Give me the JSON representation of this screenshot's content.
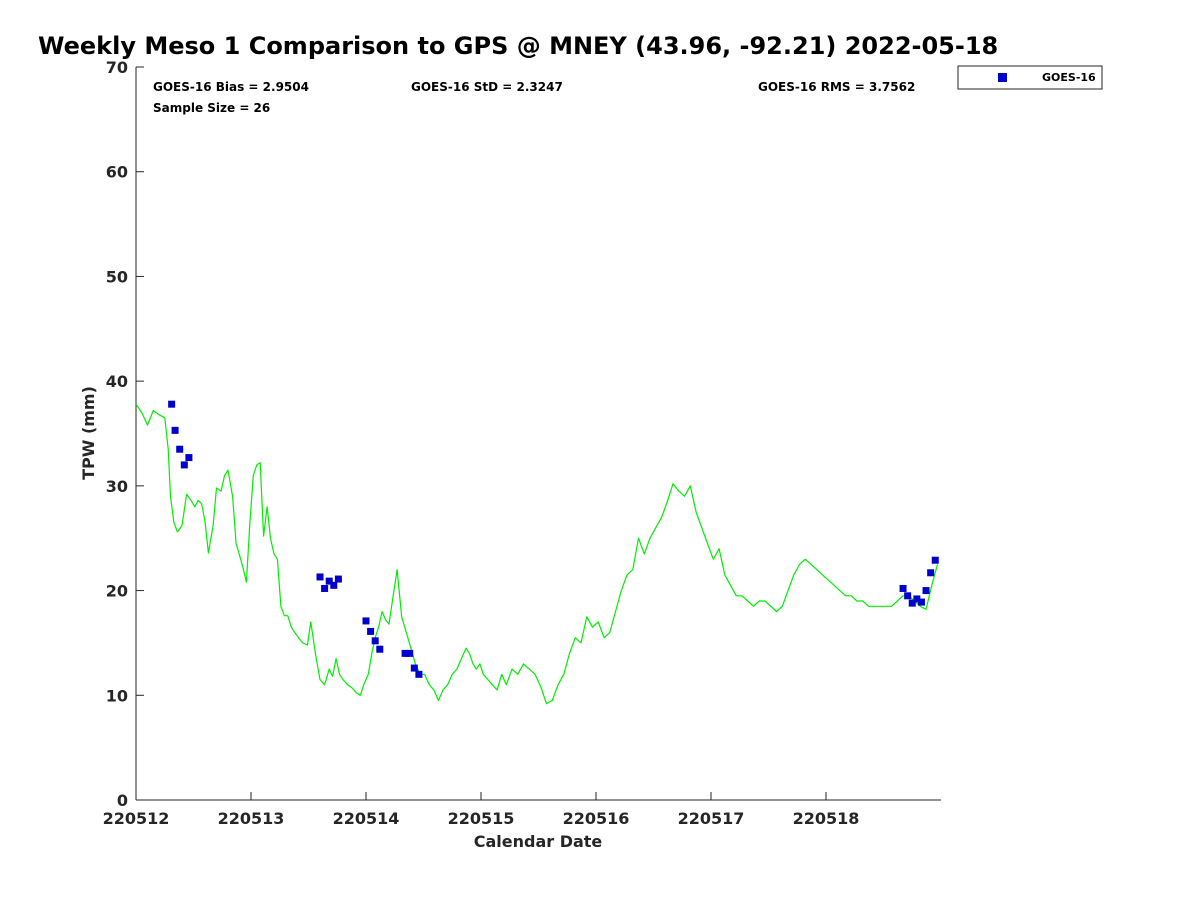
{
  "chart_data": {
    "type": "scatter",
    "title": "Weekly Meso 1 Comparison to GPS @ MNEY (43.96, -92.21) 2022-05-18",
    "xlabel": "Calendar Date",
    "ylabel": "TPW (mm)",
    "xlim": [
      0,
      7
    ],
    "ylim": [
      0,
      70
    ],
    "yticks": [
      0,
      10,
      20,
      30,
      40,
      50,
      60,
      70
    ],
    "xticks": [
      {
        "value": 0,
        "label": "220512"
      },
      {
        "value": 1,
        "label": "220513"
      },
      {
        "value": 2,
        "label": "220514"
      },
      {
        "value": 3,
        "label": "220515"
      },
      {
        "value": 4,
        "label": "220516"
      },
      {
        "value": 5,
        "label": "220517"
      },
      {
        "value": 6,
        "label": "220518"
      }
    ],
    "grid": false,
    "legend_position": "outside-top-right",
    "stats": {
      "bias": "GOES-16 Bias = 2.9504",
      "std": "GOES-16 StD = 2.3247",
      "rms": "GOES-16 RMS = 3.7562",
      "sample": "Sample Size = 26"
    },
    "series": [
      {
        "name": "GOES-16",
        "type": "scatter",
        "color": "#0000cc",
        "x": [
          0.31,
          0.34,
          0.38,
          0.42,
          0.46,
          1.6,
          1.64,
          1.68,
          1.72,
          1.76,
          2.0,
          2.04,
          2.08,
          2.12,
          2.34,
          2.38,
          2.42,
          2.46,
          6.67,
          6.71,
          6.75,
          6.79,
          6.83,
          6.87,
          6.91,
          6.95
        ],
        "y": [
          37.8,
          35.3,
          33.5,
          32.0,
          32.7,
          21.3,
          20.2,
          20.9,
          20.5,
          21.1,
          17.1,
          16.1,
          15.2,
          14.4,
          14.0,
          14.0,
          12.6,
          12.0,
          20.2,
          19.5,
          18.8,
          19.2,
          18.9,
          20.0,
          21.7,
          22.9
        ]
      },
      {
        "type": "line",
        "color": "#00ee00",
        "x": [
          0.0,
          0.05,
          0.1,
          0.15,
          0.2,
          0.25,
          0.28,
          0.3,
          0.33,
          0.36,
          0.4,
          0.44,
          0.48,
          0.51,
          0.54,
          0.57,
          0.6,
          0.63,
          0.67,
          0.7,
          0.74,
          0.77,
          0.8,
          0.84,
          0.87,
          0.9,
          0.93,
          0.96,
          0.99,
          1.02,
          1.05,
          1.08,
          1.11,
          1.14,
          1.17,
          1.2,
          1.23,
          1.26,
          1.29,
          1.32,
          1.35,
          1.38,
          1.42,
          1.45,
          1.49,
          1.52,
          1.56,
          1.6,
          1.64,
          1.68,
          1.71,
          1.74,
          1.77,
          1.8,
          1.84,
          1.88,
          1.92,
          1.95,
          1.98,
          2.02,
          2.05,
          2.08,
          2.11,
          2.14,
          2.17,
          2.2,
          2.23,
          2.27,
          2.31,
          2.35,
          2.39,
          2.43,
          2.47,
          2.51,
          2.55,
          2.59,
          2.63,
          2.67,
          2.71,
          2.75,
          2.79,
          2.83,
          2.87,
          2.9,
          2.93,
          2.96,
          2.99,
          3.02,
          3.06,
          3.1,
          3.14,
          3.18,
          3.22,
          3.27,
          3.32,
          3.37,
          3.42,
          3.47,
          3.52,
          3.57,
          3.62,
          3.67,
          3.72,
          3.77,
          3.82,
          3.87,
          3.92,
          3.97,
          4.02,
          4.07,
          4.12,
          4.17,
          4.22,
          4.27,
          4.32,
          4.37,
          4.42,
          4.47,
          4.52,
          4.57,
          4.62,
          4.67,
          4.72,
          4.77,
          4.82,
          4.87,
          4.92,
          4.97,
          5.02,
          5.07,
          5.12,
          5.17,
          5.22,
          5.27,
          5.32,
          5.37,
          5.42,
          5.47,
          5.52,
          5.57,
          5.62,
          5.67,
          5.72,
          5.77,
          5.82,
          5.87,
          5.92,
          5.97,
          6.02,
          6.07,
          6.12,
          6.17,
          6.22,
          6.27,
          6.32,
          6.37,
          6.42,
          6.47,
          6.52,
          6.57,
          6.62,
          6.67,
          6.72,
          6.77,
          6.82,
          6.87,
          6.92,
          6.97
        ],
        "y": [
          37.8,
          37.0,
          35.8,
          37.2,
          36.8,
          36.5,
          33.5,
          29.0,
          26.5,
          25.6,
          26.2,
          29.2,
          28.6,
          28.0,
          28.6,
          28.3,
          26.6,
          23.6,
          26.2,
          29.8,
          29.5,
          31.0,
          31.5,
          29.0,
          24.5,
          23.4,
          22.2,
          20.8,
          26.5,
          31.0,
          32.0,
          32.2,
          25.2,
          28.0,
          25.0,
          23.5,
          23.0,
          18.5,
          17.6,
          17.6,
          16.5,
          16.0,
          15.4,
          15.0,
          14.8,
          17.0,
          14.0,
          11.5,
          11.0,
          12.5,
          11.8,
          13.5,
          12.0,
          11.5,
          11.0,
          10.7,
          10.2,
          10.0,
          11.0,
          12.0,
          14.0,
          15.5,
          16.5,
          18.0,
          17.2,
          16.8,
          19.0,
          22.0,
          17.5,
          16.0,
          14.5,
          13.0,
          12.0,
          12.0,
          11.0,
          10.5,
          9.5,
          10.5,
          11.0,
          12.0,
          12.5,
          13.5,
          14.5,
          14.0,
          13.0,
          12.5,
          13.0,
          12.0,
          11.5,
          11.0,
          10.5,
          12.0,
          11.0,
          12.5,
          12.0,
          13.0,
          12.5,
          12.0,
          10.8,
          9.2,
          9.5,
          11.0,
          12.0,
          14.0,
          15.5,
          15.0,
          17.5,
          16.5,
          17.0,
          15.5,
          16.0,
          18.0,
          20.0,
          21.5,
          22.0,
          25.0,
          23.5,
          25.0,
          26.0,
          27.0,
          28.5,
          30.2,
          29.5,
          29.0,
          30.0,
          27.5,
          26.0,
          24.5,
          23.0,
          24.0,
          21.5,
          20.5,
          19.5,
          19.5,
          19.0,
          18.5,
          19.0,
          19.0,
          18.5,
          18.0,
          18.5,
          20.0,
          21.5,
          22.5,
          23.0,
          22.5,
          22.0,
          21.5,
          21.0,
          20.5,
          20.0,
          19.5,
          19.5,
          19.0,
          19.0,
          18.5,
          18.5,
          18.5,
          18.5,
          18.5,
          19.0,
          19.5,
          19.5,
          19.0,
          18.5,
          18.2,
          20.5,
          22.5
        ]
      }
    ]
  }
}
